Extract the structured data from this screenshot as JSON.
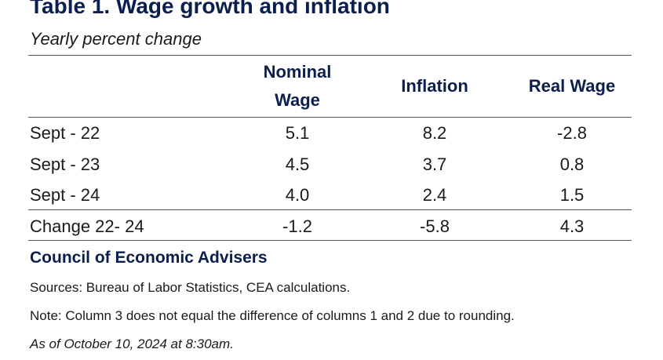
{
  "chart_data": {
    "type": "table",
    "title": "Table 1. Wage growth and inflation",
    "subtitle": "Yearly percent change",
    "columns": [
      "Nominal Wage",
      "Inflation",
      "Real Wage"
    ],
    "rows": [
      {
        "label": "Sept - 22",
        "values": [
          "5.1",
          "8.2",
          "-2.8"
        ]
      },
      {
        "label": "Sept - 23",
        "values": [
          "4.5",
          "3.7",
          "0.8"
        ]
      },
      {
        "label": "Sept - 24",
        "values": [
          "4.0",
          "2.4",
          "1.5"
        ]
      },
      {
        "label": "Change 22- 24",
        "values": [
          "-1.2",
          "-5.8",
          "4.3"
        ]
      }
    ]
  },
  "footer": {
    "org": "Council of Economic Advisers",
    "sources": "Sources: Bureau of Labor Statistics, CEA calculations.",
    "note": "Note: Column 3 does not equal the difference of columns 1 and 2 due to rounding.",
    "as_of": "As of October 10, 2024 at 8:30am."
  },
  "colors": {
    "heading": "#0b1f4e",
    "text": "#1a1a1a",
    "rule": "#555555"
  }
}
